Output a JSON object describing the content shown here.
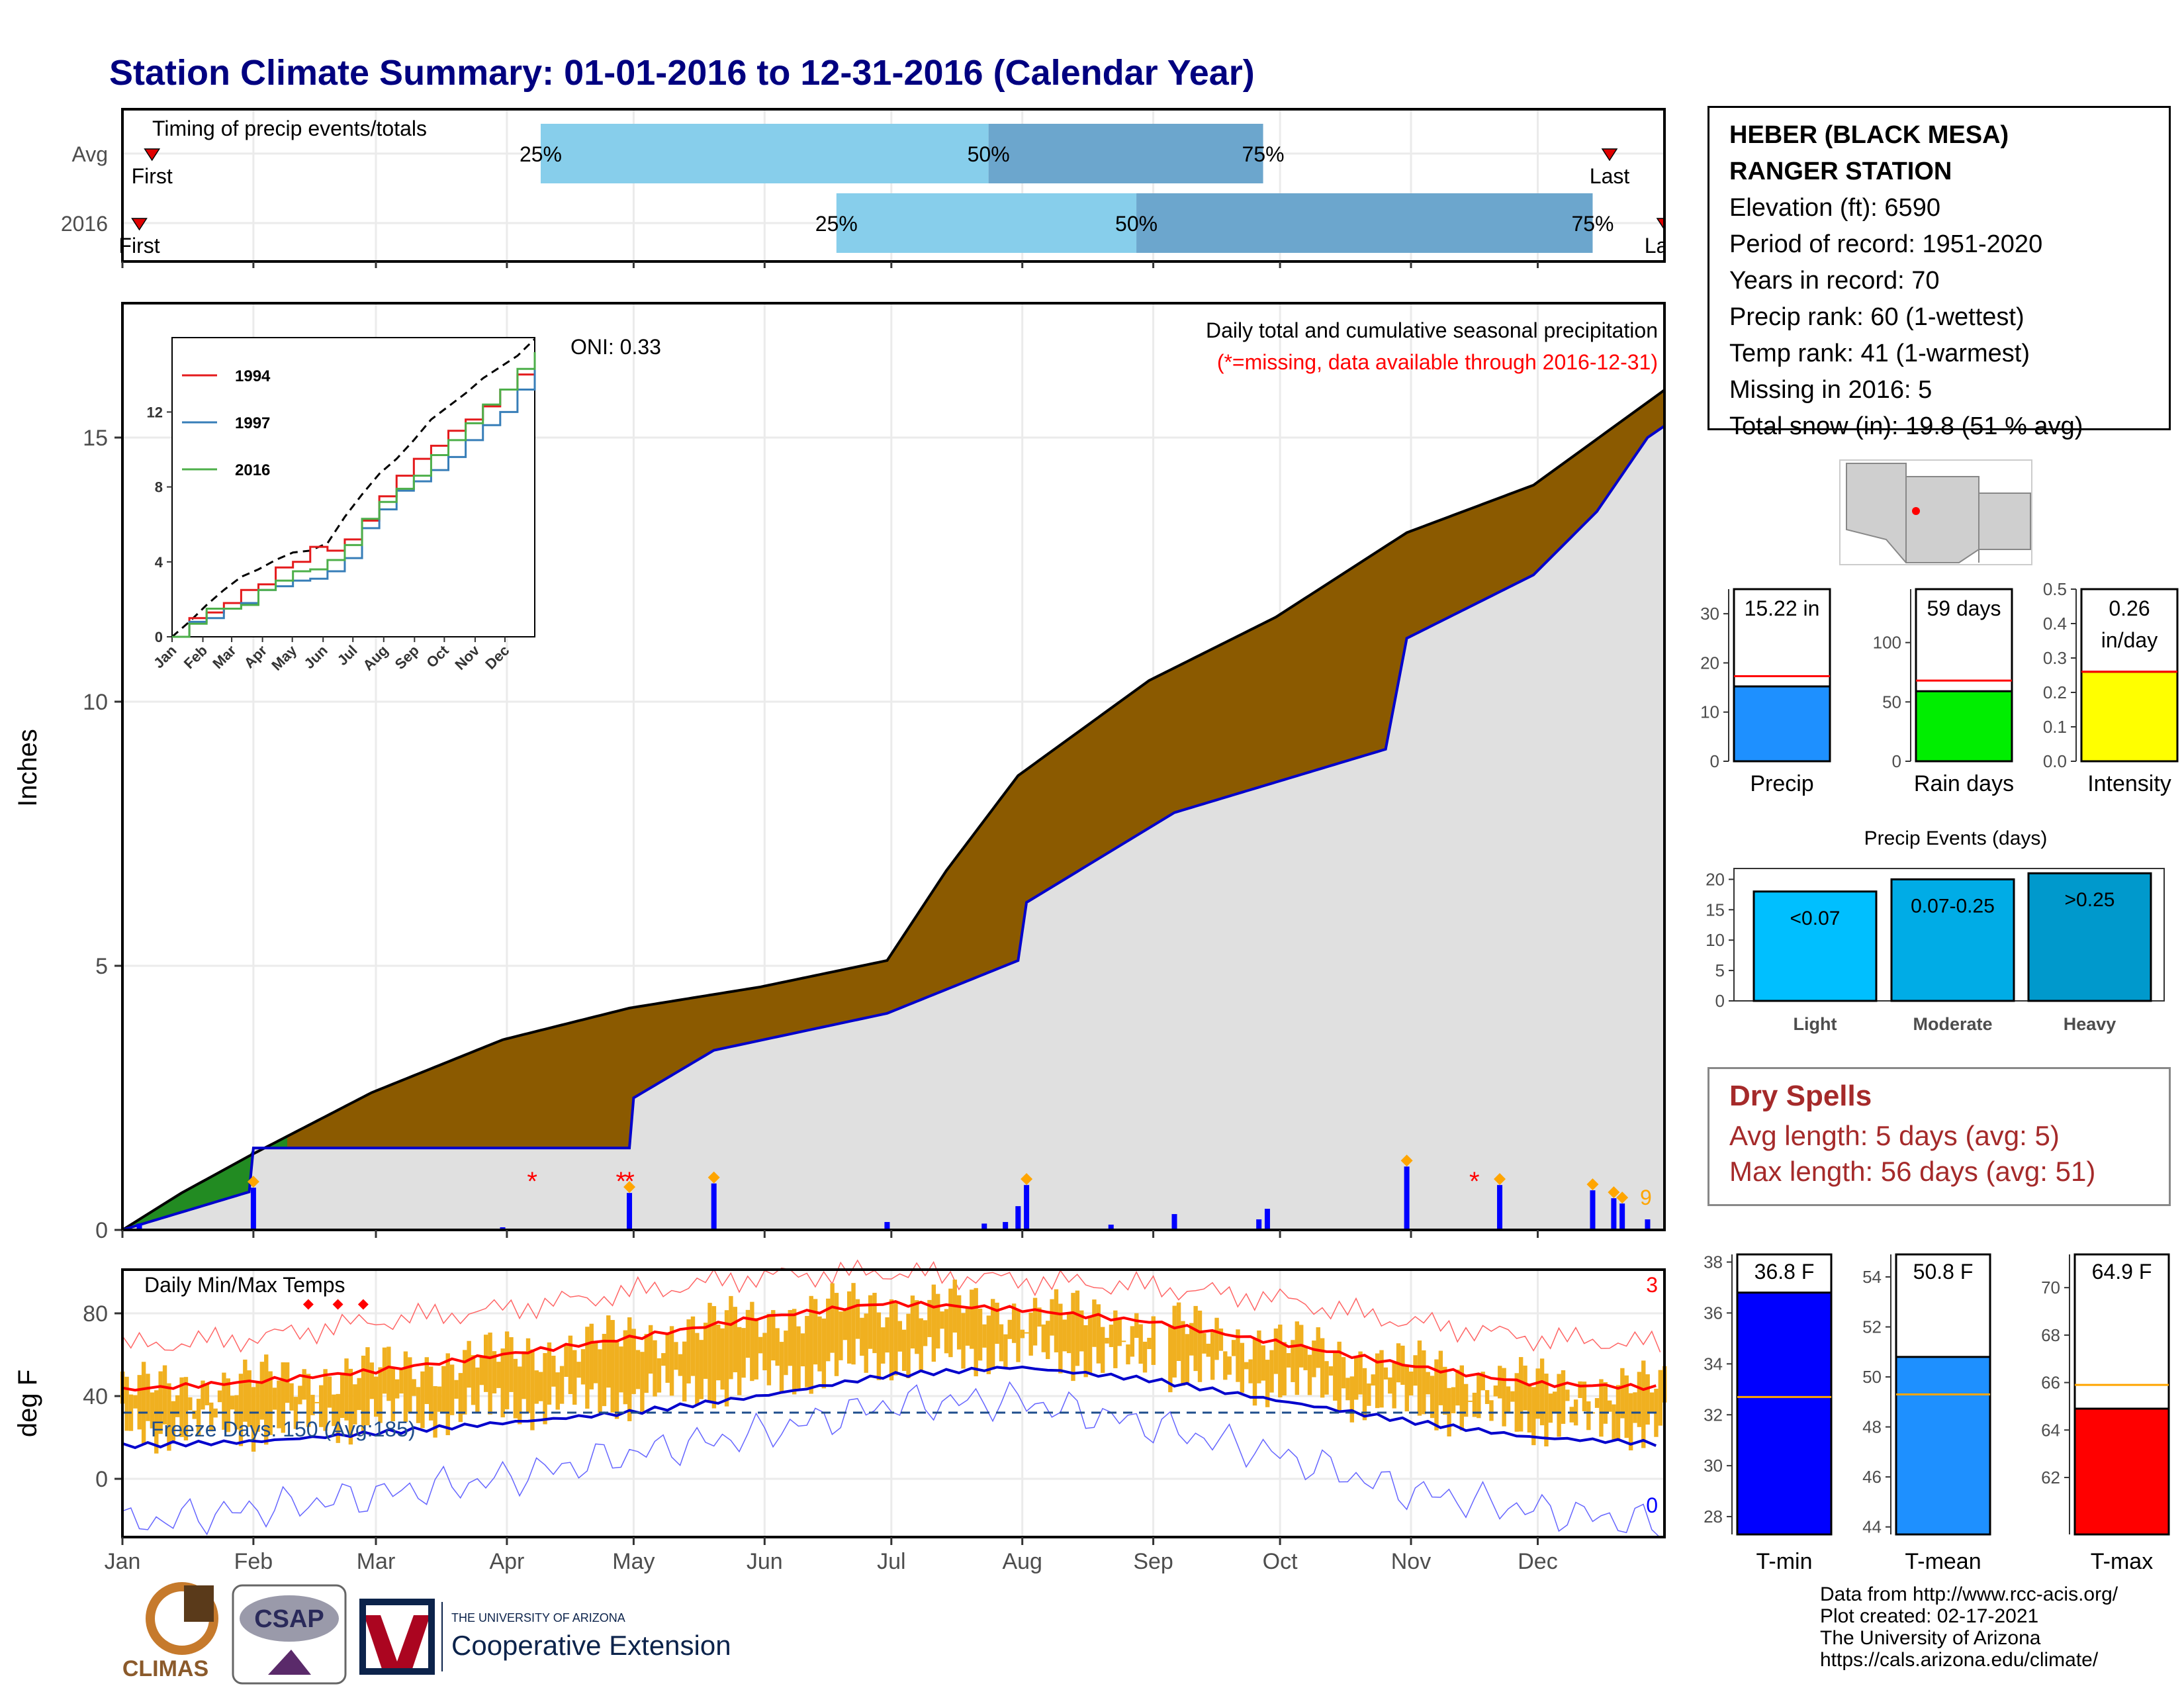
{
  "title": "Station Climate Summary: 01-01-2016 to 12-31-2016 (Calendar Year)",
  "timing": {
    "heading": "Timing of precip events/totals",
    "rows": [
      {
        "label": "Avg",
        "p25": 100,
        "p50": 206,
        "p75": 271,
        "first_day": 8,
        "last_day": 353
      },
      {
        "label": "2016",
        "p25": 170,
        "p50": 241,
        "p75": 349,
        "first_day": 5,
        "last_day": 366
      }
    ],
    "p25_label": "25%",
    "p50_label": "50%",
    "p75_label": "75%",
    "first_label": "First",
    "last_label": "Last"
  },
  "precip_panel": {
    "ylabel": "Inches",
    "title": "Daily total and cumulative seasonal precipitation",
    "note": "(*=missing, data available through 2016-12-31)",
    "oni": "ONI: 0.33",
    "missing_count": "9",
    "yticks": [
      0,
      5,
      10,
      15
    ]
  },
  "inset": {
    "legend": [
      "1994",
      "1997",
      "2016"
    ],
    "series_colors": [
      "#e41a1c",
      "#377eb8",
      "#4daf4a"
    ],
    "months": [
      "Jan",
      "Feb",
      "Mar",
      "Apr",
      "May",
      "Jun",
      "Jul",
      "Aug",
      "Sep",
      "Oct",
      "Nov",
      "Dec"
    ],
    "yticks": [
      0,
      4,
      8,
      12
    ]
  },
  "temp_panel": {
    "ylabel": "deg F",
    "title": "Daily Min/Max Temps",
    "freeze_label": "Freeze Days: 150 (Avg:185)",
    "missing_max": "3",
    "missing_min": "0",
    "yticks": [
      0,
      40,
      80
    ]
  },
  "months": [
    "Jan",
    "Feb",
    "Mar",
    "Apr",
    "May",
    "Jun",
    "Jul",
    "Aug",
    "Sep",
    "Oct",
    "Nov",
    "Dec"
  ],
  "station": {
    "name1": "HEBER (BLACK MESA)",
    "name2": "RANGER STATION",
    "elevation": "Elevation (ft): 6590",
    "period": "Period of record: 1951-2020",
    "years": "Years in record: 70",
    "precip_rank": "Precip rank: 60 (1-wettest)",
    "temp_rank": "Temp rank: 41 (1-warmest)",
    "missing": "Missing in 2016: 5",
    "snow": "Total snow (in): 19.8 (51 % avg)"
  },
  "summary_bars": [
    {
      "label": "Precip",
      "value_text": "15.22 in",
      "value": 15.22,
      "avg": 17.3,
      "ymax": 35,
      "ticks": [
        0,
        10,
        20,
        30
      ],
      "color": "#1e90ff"
    },
    {
      "label": "Rain days",
      "value_text": "59 days",
      "value": 59,
      "avg": 68,
      "ymax": 145,
      "ticks": [
        0,
        50,
        100
      ],
      "color": "#00ee00"
    },
    {
      "label": "Intensity",
      "value_text": "0.26",
      "value_text2": "in/day",
      "value": 0.26,
      "avg": 0.26,
      "ymax": 0.5,
      "ticks": [
        "0.0",
        "0.1",
        "0.2",
        "0.3",
        "0.4",
        "0.5"
      ],
      "color": "#ffff00"
    }
  ],
  "events": {
    "title": "Precip Events (days)",
    "bars": [
      {
        "label": "Light",
        "range": "<0.07",
        "value": 18,
        "color": "#00bfff"
      },
      {
        "label": "Moderate",
        "range": "0.07-0.25",
        "value": 20,
        "color": "#00ace6"
      },
      {
        "label": "Heavy",
        "range": ">0.25",
        "value": 21,
        "color": "#0099cc"
      }
    ],
    "yticks": [
      0,
      5,
      10,
      15,
      20
    ]
  },
  "dry_spells": {
    "title": "Dry Spells",
    "avg": "Avg length: 5 days (avg: 5)",
    "max": "Max length: 56 days (avg: 51)"
  },
  "temp_bars": [
    {
      "label": "T-min",
      "value_text": "36.8 F",
      "value": 36.8,
      "avg": 32.7,
      "ymin": 27.3,
      "ymax": 38.3,
      "ticks": [
        28,
        30,
        32,
        34,
        36,
        38
      ],
      "color": "#0000ff"
    },
    {
      "label": "T-mean",
      "value_text": "50.8 F",
      "value": 50.8,
      "avg": 49.3,
      "ymin": 43.7,
      "ymax": 54.9,
      "ticks": [
        44,
        46,
        48,
        50,
        52,
        54
      ],
      "color": "#1e90ff"
    },
    {
      "label": "T-max",
      "value_text": "64.9 F",
      "value": 64.9,
      "avg": 65.9,
      "ymin": 59.6,
      "ymax": 71.4,
      "ticks": [
        62,
        64,
        66,
        68,
        70
      ],
      "color": "#ff0000"
    }
  ],
  "footer": {
    "line1": "Data from http://www.rcc-acis.org/",
    "line2": "Plot created: 02-17-2021",
    "line3": "The University of Arizona",
    "line4": "https://cals.arizona.edu/climate/",
    "logo_climas": "CLIMAS",
    "logo_csap": "CSAP",
    "logo_ua_small": "THE UNIVERSITY OF ARIZONA",
    "logo_ua": "Cooperative Extension"
  },
  "chart_data": [
    {
      "type": "area",
      "title": "Daily total and cumulative seasonal precipitation",
      "ylabel": "Inches",
      "ylim": [
        0,
        17.5
      ],
      "series": [
        {
          "name": "Avg",
          "x": [
            1,
            15,
            31,
            60,
            91,
            121,
            152,
            182,
            196,
            213,
            244,
            274,
            305,
            335,
            366
          ],
          "values": [
            0,
            0.7,
            1.4,
            2.6,
            3.6,
            4.2,
            4.6,
            5.1,
            6.8,
            8.6,
            10.4,
            11.6,
            13.2,
            14.1,
            15.9
          ]
        },
        {
          "name": "2016",
          "x": [
            1,
            31,
            32,
            121,
            122,
            141,
            182,
            213,
            215,
            250,
            300,
            305,
            335,
            350,
            362,
            366
          ],
          "values": [
            0,
            0.72,
            1.55,
            1.55,
            2.5,
            3.4,
            4.1,
            5.1,
            6.2,
            7.9,
            9.1,
            11.2,
            12.4,
            13.6,
            15.0,
            15.22
          ]
        }
      ],
      "daily_precip": [
        {
          "day": 5,
          "value": 0.12
        },
        {
          "day": 32,
          "value": 0.8
        },
        {
          "day": 91,
          "value": 0.05
        },
        {
          "day": 121,
          "value": 0.7
        },
        {
          "day": 141,
          "value": 0.88
        },
        {
          "day": 182,
          "value": 0.15
        },
        {
          "day": 205,
          "value": 0.12
        },
        {
          "day": 210,
          "value": 0.15
        },
        {
          "day": 213,
          "value": 0.45
        },
        {
          "day": 215,
          "value": 0.85
        },
        {
          "day": 235,
          "value": 0.1
        },
        {
          "day": 250,
          "value": 0.3
        },
        {
          "day": 270,
          "value": 0.2
        },
        {
          "day": 272,
          "value": 0.4
        },
        {
          "day": 305,
          "value": 1.2
        },
        {
          "day": 327,
          "value": 0.85
        },
        {
          "day": 349,
          "value": 0.75
        },
        {
          "day": 354,
          "value": 0.6
        },
        {
          "day": 356,
          "value": 0.5
        },
        {
          "day": 362,
          "value": 0.2
        }
      ]
    },
    {
      "type": "line",
      "title": "Daily Min/Max Temps",
      "ylabel": "deg F",
      "ylim": [
        -25,
        105
      ],
      "x": [
        1,
        32,
        60,
        91,
        121,
        152,
        182,
        213,
        244,
        274,
        305,
        335,
        366
      ],
      "series": [
        {
          "name": "avg max",
          "values": [
            43,
            47,
            52,
            60,
            68,
            78,
            85,
            82,
            76,
            66,
            55,
            46,
            44
          ]
        },
        {
          "name": "avg min",
          "values": [
            16,
            18,
            22,
            27,
            32,
            40,
            50,
            54,
            48,
            38,
            28,
            20,
            17
          ]
        },
        {
          "name": "record max",
          "values": [
            64,
            68,
            76,
            82,
            90,
            98,
            100,
            96,
            93,
            87,
            76,
            68,
            65
          ]
        },
        {
          "name": "record min",
          "values": [
            -22,
            -15,
            -8,
            0,
            12,
            22,
            36,
            38,
            26,
            12,
            -6,
            -15,
            -22
          ]
        }
      ],
      "freeze_line": 32
    }
  ]
}
